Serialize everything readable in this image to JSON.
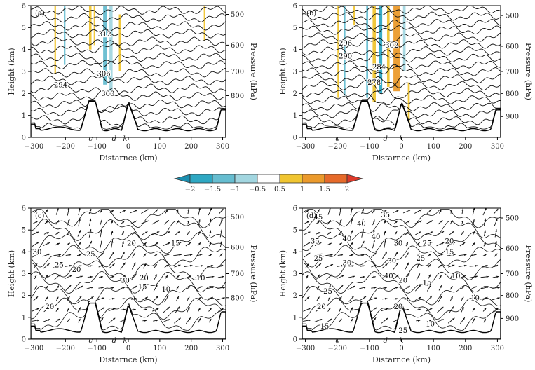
{
  "colorbar": {
    "ticks": [
      "−2",
      "−1.5",
      "−1",
      "−0.5",
      "0.5",
      "1",
      "1.5",
      "2"
    ],
    "values": [
      -2,
      -1.5,
      -1,
      -0.5,
      0.5,
      1,
      1.5,
      2
    ],
    "colors": [
      "#2fa8c3",
      "#66bdd0",
      "#a2d6e0",
      "#ffffff",
      "#f0c531",
      "#eb9a2c",
      "#e66a2a"
    ],
    "under_color": "#1b8fb0",
    "over_color": "#de3a2a"
  },
  "chart_data": [
    {
      "type": "contour",
      "panel_label": "(a)",
      "xlabel": "Distarnce (km)",
      "ylabel": "Height (km)",
      "y2label": "Pressure (hPa)",
      "xlim": [
        -310,
        310
      ],
      "ylim": [
        0,
        6
      ],
      "xticks": [
        -300,
        -200,
        -100,
        0,
        100,
        200,
        300
      ],
      "xtick_labels": [
        "−300",
        "−200",
        "−100",
        "0",
        "100",
        "200",
        "300"
      ],
      "yticks": [
        0,
        1,
        2,
        3,
        4,
        5,
        6
      ],
      "ytick_labels": [
        "0",
        "1",
        "2",
        "3",
        "4",
        "5",
        "6"
      ],
      "pressure_ticks": [
        {
          "label": "500",
          "h": 5.6
        },
        {
          "label": "600",
          "h": 4.2
        },
        {
          "label": "700",
          "h": 3.0
        },
        {
          "label": "800",
          "h": 1.9
        }
      ],
      "markers": [
        {
          "label": "c",
          "x": -120
        },
        {
          "label": "d",
          "x": -45
        },
        {
          "label": "k",
          "x": -10
        }
      ],
      "contour_labels": [
        {
          "text": "312",
          "x": -75,
          "y": 4.7
        },
        {
          "text": "306",
          "x": -78,
          "y": 2.9
        },
        {
          "text": "294",
          "x": -215,
          "y": 2.4
        },
        {
          "text": "300",
          "x": -65,
          "y": 2.0
        }
      ],
      "shading": [
        {
          "x": -235,
          "w": 5,
          "y0": 2.9,
          "y1": 6.0,
          "v": 0.7
        },
        {
          "x": -205,
          "w": 5,
          "y0": 3.3,
          "y1": 6.0,
          "v": -1.3
        },
        {
          "x": -125,
          "w": 8,
          "y0": 4.0,
          "y1": 6.0,
          "v": 0.8
        },
        {
          "x": -110,
          "w": 4,
          "y0": 4.2,
          "y1": 6.0,
          "v": 0.6
        },
        {
          "x": -80,
          "w": 12,
          "y0": 2.4,
          "y1": 6.0,
          "v": -1.2
        },
        {
          "x": -60,
          "w": 10,
          "y0": 2.0,
          "y1": 6.0,
          "v": -0.8
        },
        {
          "x": -30,
          "w": 6,
          "y0": 3.0,
          "y1": 5.6,
          "v": 0.8
        },
        {
          "x": 240,
          "w": 4,
          "y0": 4.4,
          "y1": 6.0,
          "v": 0.6
        }
      ],
      "n_contours": 16,
      "field": "potential temperature (K) with vertical velocity shading"
    },
    {
      "type": "contour",
      "panel_label": "(b)",
      "xlabel": "Distarnce (km)",
      "ylabel": "Height (km)",
      "y2label": "Pressure (hPa)",
      "xlim": [
        -310,
        310
      ],
      "ylim": [
        0,
        6
      ],
      "xticks": [
        -300,
        -200,
        -100,
        0,
        100,
        200,
        300
      ],
      "xtick_labels": [
        "−300",
        "−200",
        "−100",
        "0",
        "100",
        "200",
        "300"
      ],
      "yticks": [
        0,
        1,
        2,
        3,
        4,
        5,
        6
      ],
      "ytick_labels": [
        "0",
        "1",
        "2",
        "3",
        "4",
        "5",
        "6"
      ],
      "pressure_ticks": [
        {
          "label": "500",
          "h": 5.55
        },
        {
          "label": "600",
          "h": 4.15
        },
        {
          "label": "700",
          "h": 3.0
        },
        {
          "label": "800",
          "h": 2.0
        },
        {
          "label": "900",
          "h": 0.95
        }
      ],
      "markers": [
        {
          "label": "c",
          "x": -200
        },
        {
          "label": "d",
          "x": -50
        },
        {
          "label": "k",
          "x": 0
        }
      ],
      "contour_labels": [
        {
          "text": "296",
          "x": -175,
          "y": 4.3
        },
        {
          "text": "302",
          "x": -30,
          "y": 4.2
        },
        {
          "text": "290",
          "x": -175,
          "y": 3.7
        },
        {
          "text": "284",
          "x": -70,
          "y": 3.2
        },
        {
          "text": "278",
          "x": -85,
          "y": 2.5
        }
      ],
      "shading": [
        {
          "x": -200,
          "w": 6,
          "y0": 1.8,
          "y1": 6.0,
          "v": 0.7
        },
        {
          "x": -180,
          "w": 5,
          "y0": 1.9,
          "y1": 6.0,
          "v": -1.1
        },
        {
          "x": -150,
          "w": 5,
          "y0": 5.1,
          "y1": 6.0,
          "v": 0.6
        },
        {
          "x": -110,
          "w": 6,
          "y0": 1.8,
          "y1": 6.0,
          "v": -1.2
        },
        {
          "x": -90,
          "w": 10,
          "y0": 1.6,
          "y1": 6.0,
          "v": 0.8
        },
        {
          "x": -70,
          "w": 10,
          "y0": 2.0,
          "y1": 6.0,
          "v": -1.6
        },
        {
          "x": -45,
          "w": 8,
          "y0": 2.3,
          "y1": 6.0,
          "v": 0.7
        },
        {
          "x": -25,
          "w": 20,
          "y0": 2.1,
          "y1": 6.0,
          "v": 1.3
        },
        {
          "x": 5,
          "w": 8,
          "y0": 3.0,
          "y1": 6.0,
          "v": -0.8
        },
        {
          "x": 20,
          "w": 6,
          "y0": 0.6,
          "y1": 2.5,
          "v": 0.8
        }
      ],
      "n_contours": 18,
      "field": "potential temperature (K) with vertical velocity shading"
    },
    {
      "type": "quiver-contour",
      "panel_label": "(c)",
      "xlabel": "Distarnce (km)",
      "ylabel": "Height (km)",
      "y2label": "Pressure (hPa)",
      "xlim": [
        -310,
        310
      ],
      "ylim": [
        0,
        6
      ],
      "xticks": [
        -300,
        -200,
        -100,
        0,
        100,
        200,
        300
      ],
      "xtick_labels": [
        "−300",
        "−200",
        "−100",
        "0",
        "100",
        "200",
        "300"
      ],
      "yticks": [
        0,
        1,
        2,
        3,
        4,
        5,
        6
      ],
      "ytick_labels": [
        "0",
        "1",
        "2",
        "3",
        "4",
        "5",
        "6"
      ],
      "pressure_ticks": [
        {
          "label": "500",
          "h": 5.6
        },
        {
          "label": "600",
          "h": 4.2
        },
        {
          "label": "700",
          "h": 3.0
        },
        {
          "label": "800",
          "h": 1.9
        }
      ],
      "markers": [
        {
          "label": "c",
          "x": -120
        },
        {
          "label": "d",
          "x": -45
        },
        {
          "label": "k",
          "x": -10
        }
      ],
      "contour_labels": [
        {
          "text": "20",
          "x": 10,
          "y": 4.4
        },
        {
          "text": "15",
          "x": 150,
          "y": 4.4
        },
        {
          "text": "30",
          "x": -290,
          "y": 4.0
        },
        {
          "text": "25",
          "x": -120,
          "y": 3.9
        },
        {
          "text": "25",
          "x": -220,
          "y": 3.4
        },
        {
          "text": "20",
          "x": -165,
          "y": 3.2
        },
        {
          "text": "20",
          "x": 50,
          "y": 2.8
        },
        {
          "text": "30",
          "x": -10,
          "y": 2.7
        },
        {
          "text": "15",
          "x": 45,
          "y": 2.4
        },
        {
          "text": "10",
          "x": 120,
          "y": 2.3
        },
        {
          "text": "10",
          "x": 230,
          "y": 2.8
        },
        {
          "text": "20",
          "x": -250,
          "y": 1.5
        }
      ],
      "vector_grid": {
        "nx": 18,
        "ny": 12
      },
      "field": "wind vectors with wind speed contours (m/s)"
    },
    {
      "type": "quiver-contour",
      "panel_label": "(d)",
      "xlabel": "Distarnce (km)",
      "ylabel": "Height (km)",
      "y2label": "Pressure (hPa)",
      "xlim": [
        -310,
        310
      ],
      "ylim": [
        0,
        6
      ],
      "xticks": [
        -300,
        -200,
        -100,
        0,
        100,
        200,
        300
      ],
      "xtick_labels": [
        "−300",
        "−200",
        "−100",
        "0",
        "100",
        "200",
        "300"
      ],
      "yticks": [
        0,
        1,
        2,
        3,
        4,
        5,
        6
      ],
      "ytick_labels": [
        "0",
        "1",
        "2",
        "3",
        "4",
        "5",
        "6"
      ],
      "pressure_ticks": [
        {
          "label": "500",
          "h": 5.55
        },
        {
          "label": "600",
          "h": 4.15
        },
        {
          "label": "700",
          "h": 3.0
        },
        {
          "label": "800",
          "h": 2.0
        },
        {
          "label": "900",
          "h": 0.95
        }
      ],
      "markers": [
        {
          "label": "c",
          "x": -200
        },
        {
          "label": "d",
          "x": -50
        },
        {
          "label": "k",
          "x": 0
        }
      ],
      "contour_labels": [
        {
          "text": "45",
          "x": -260,
          "y": 5.6
        },
        {
          "text": "35",
          "x": -50,
          "y": 5.7
        },
        {
          "text": "40",
          "x": -125,
          "y": 5.3
        },
        {
          "text": "35",
          "x": -270,
          "y": 4.5
        },
        {
          "text": "40",
          "x": -170,
          "y": 4.6
        },
        {
          "text": "40",
          "x": -80,
          "y": 4.7
        },
        {
          "text": "30",
          "x": -10,
          "y": 4.4
        },
        {
          "text": "25",
          "x": 80,
          "y": 4.4
        },
        {
          "text": "20",
          "x": 150,
          "y": 4.5
        },
        {
          "text": "25",
          "x": -260,
          "y": 3.7
        },
        {
          "text": "30",
          "x": -170,
          "y": 3.5
        },
        {
          "text": "30",
          "x": -30,
          "y": 3.6
        },
        {
          "text": "25",
          "x": 60,
          "y": 3.7
        },
        {
          "text": "15",
          "x": 150,
          "y": 4.0
        },
        {
          "text": "40",
          "x": -40,
          "y": 2.9
        },
        {
          "text": "20",
          "x": 5,
          "y": 2.7
        },
        {
          "text": "15",
          "x": 80,
          "y": 2.6
        },
        {
          "text": "10",
          "x": 170,
          "y": 2.9
        },
        {
          "text": "25",
          "x": -230,
          "y": 2.2
        },
        {
          "text": "20",
          "x": -250,
          "y": 1.5
        },
        {
          "text": "20",
          "x": -10,
          "y": 1.5
        },
        {
          "text": "10",
          "x": 230,
          "y": 1.9
        },
        {
          "text": "15",
          "x": -240,
          "y": 0.6
        },
        {
          "text": "25",
          "x": 5,
          "y": 0.4
        },
        {
          "text": "10",
          "x": 90,
          "y": 0.7
        }
      ],
      "vector_grid": {
        "nx": 18,
        "ny": 12
      },
      "field": "wind vectors with wind speed contours (m/s)"
    }
  ]
}
